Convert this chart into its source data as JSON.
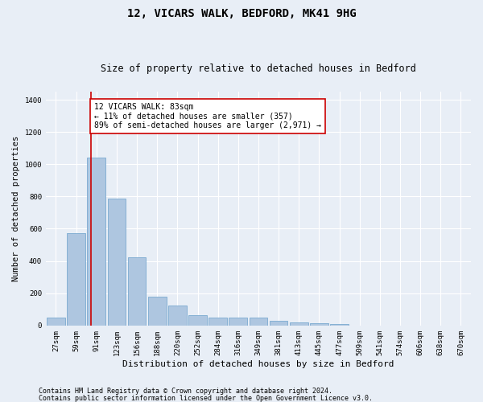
{
  "title1": "12, VICARS WALK, BEDFORD, MK41 9HG",
  "title2": "Size of property relative to detached houses in Bedford",
  "xlabel": "Distribution of detached houses by size in Bedford",
  "ylabel": "Number of detached properties",
  "categories": [
    "27sqm",
    "59sqm",
    "91sqm",
    "123sqm",
    "156sqm",
    "188sqm",
    "220sqm",
    "252sqm",
    "284sqm",
    "316sqm",
    "349sqm",
    "381sqm",
    "413sqm",
    "445sqm",
    "477sqm",
    "509sqm",
    "541sqm",
    "574sqm",
    "606sqm",
    "638sqm",
    "670sqm"
  ],
  "values": [
    50,
    575,
    1040,
    785,
    425,
    180,
    125,
    62,
    48,
    48,
    48,
    28,
    20,
    15,
    10,
    0,
    0,
    0,
    0,
    0,
    0
  ],
  "bar_color": "#aec6e0",
  "bar_edgecolor": "#7aaad0",
  "background_color": "#e8eef6",
  "grid_color": "#ffffff",
  "vline_color": "#cc0000",
  "annotation_text": "12 VICARS WALK: 83sqm\n← 11% of detached houses are smaller (357)\n89% of semi-detached houses are larger (2,971) →",
  "annotation_box_color": "#ffffff",
  "annotation_box_edgecolor": "#cc0000",
  "ylim": [
    0,
    1450
  ],
  "yticks": [
    0,
    200,
    400,
    600,
    800,
    1000,
    1200,
    1400
  ],
  "footnote1": "Contains HM Land Registry data © Crown copyright and database right 2024.",
  "footnote2": "Contains public sector information licensed under the Open Government Licence v3.0.",
  "title1_fontsize": 10,
  "title2_fontsize": 8.5,
  "xlabel_fontsize": 8,
  "ylabel_fontsize": 7.5,
  "tick_fontsize": 6.5,
  "annotation_fontsize": 7,
  "footnote_fontsize": 6
}
